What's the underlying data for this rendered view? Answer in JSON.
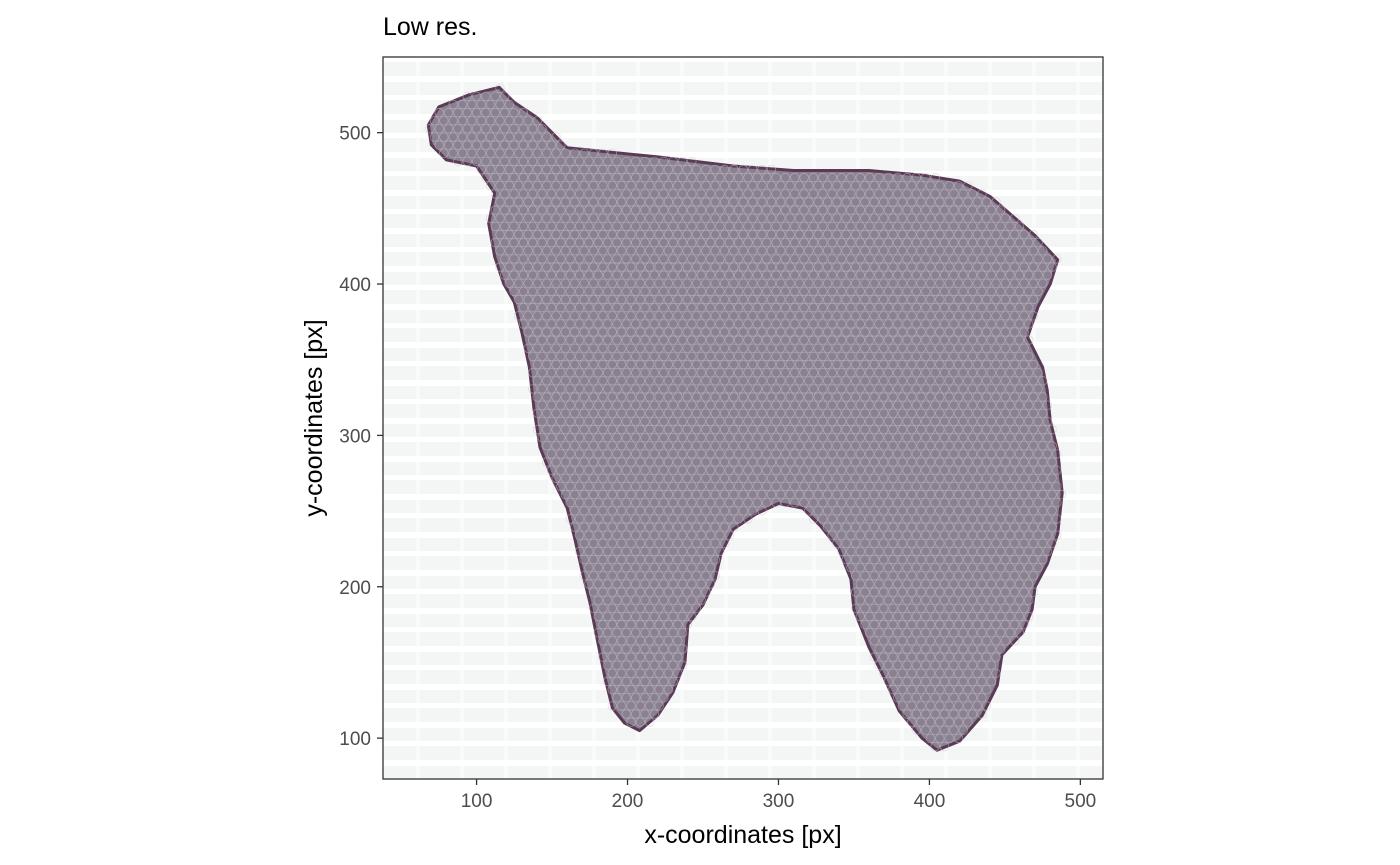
{
  "chart_data": {
    "type": "scatter",
    "title": "Low res.",
    "xlabel": "x-coordinates [px]",
    "ylabel": "y-coordinates [px]",
    "xlim": [
      38,
      515
    ],
    "ylim": [
      73,
      550
    ],
    "xticks": [
      100,
      200,
      300,
      400,
      500
    ],
    "yticks": [
      100,
      200,
      300,
      400,
      500
    ],
    "xtick_labels": [
      "100",
      "200",
      "300",
      "400",
      "500"
    ],
    "ytick_labels": [
      "100",
      "200",
      "300",
      "400",
      "500"
    ],
    "grid": false,
    "background_image": "H&E tissue section (low resolution)",
    "tissue_outline": [
      [
        75,
        517
      ],
      [
        95,
        525
      ],
      [
        115,
        530
      ],
      [
        125,
        520
      ],
      [
        140,
        510
      ],
      [
        152,
        498
      ],
      [
        160,
        490
      ],
      [
        190,
        487
      ],
      [
        220,
        484
      ],
      [
        270,
        478
      ],
      [
        310,
        475
      ],
      [
        360,
        475
      ],
      [
        395,
        472
      ],
      [
        420,
        468
      ],
      [
        440,
        458
      ],
      [
        455,
        445
      ],
      [
        470,
        432
      ],
      [
        485,
        416
      ],
      [
        480,
        400
      ],
      [
        472,
        385
      ],
      [
        465,
        365
      ],
      [
        475,
        345
      ],
      [
        478,
        330
      ],
      [
        480,
        310
      ],
      [
        485,
        290
      ],
      [
        488,
        262
      ],
      [
        485,
        235
      ],
      [
        478,
        215
      ],
      [
        470,
        200
      ],
      [
        468,
        185
      ],
      [
        462,
        170
      ],
      [
        448,
        155
      ],
      [
        445,
        135
      ],
      [
        435,
        115
      ],
      [
        420,
        98
      ],
      [
        405,
        92
      ],
      [
        395,
        100
      ],
      [
        380,
        118
      ],
      [
        370,
        140
      ],
      [
        360,
        160
      ],
      [
        350,
        185
      ],
      [
        348,
        205
      ],
      [
        340,
        225
      ],
      [
        328,
        240
      ],
      [
        316,
        252
      ],
      [
        300,
        255
      ],
      [
        285,
        248
      ],
      [
        270,
        238
      ],
      [
        262,
        222
      ],
      [
        258,
        205
      ],
      [
        250,
        188
      ],
      [
        240,
        175
      ],
      [
        238,
        150
      ],
      [
        230,
        130
      ],
      [
        220,
        115
      ],
      [
        208,
        105
      ],
      [
        198,
        110
      ],
      [
        190,
        120
      ],
      [
        185,
        140
      ],
      [
        180,
        165
      ],
      [
        175,
        190
      ],
      [
        170,
        210
      ],
      [
        165,
        232
      ],
      [
        160,
        252
      ],
      [
        150,
        272
      ],
      [
        142,
        292
      ],
      [
        138,
        318
      ],
      [
        135,
        345
      ],
      [
        130,
        368
      ],
      [
        125,
        388
      ],
      [
        118,
        400
      ],
      [
        112,
        418
      ],
      [
        108,
        440
      ],
      [
        112,
        460
      ],
      [
        100,
        478
      ],
      [
        80,
        482
      ],
      [
        70,
        492
      ],
      [
        68,
        505
      ]
    ],
    "point_color": "#c8c8cf",
    "tissue_color": "#8b8090"
  }
}
